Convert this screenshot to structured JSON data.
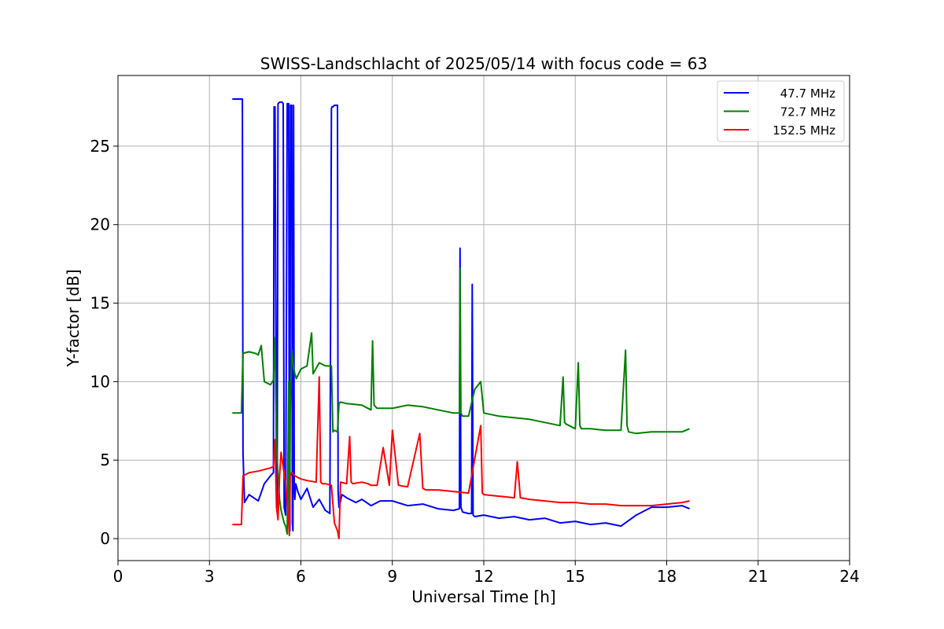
{
  "chart_data": {
    "type": "line",
    "title": "SWISS-Landschlacht of 2025/05/14 with focus code = 63",
    "xlabel": "Universal Time [h]",
    "ylabel": "Y-factor [dB]",
    "xlim": [
      0,
      24
    ],
    "ylim": [
      -1.4,
      29.5
    ],
    "xticks": [
      0,
      3,
      6,
      9,
      12,
      15,
      18,
      21,
      24
    ],
    "yticks": [
      0,
      5,
      10,
      15,
      20,
      25
    ],
    "grid": true,
    "legend_position": "top-right",
    "series": [
      {
        "name": "47.7 MHz",
        "color": "#0000ff",
        "x": [
          3.75,
          4.05,
          4.08,
          4.1,
          4.15,
          4.3,
          4.6,
          4.8,
          5.0,
          5.1,
          5.12,
          5.15,
          5.2,
          5.22,
          5.25,
          5.3,
          5.32,
          5.38,
          5.42,
          5.45,
          5.5,
          5.55,
          5.6,
          5.62,
          5.64,
          5.66,
          5.7,
          5.72,
          5.74,
          5.76,
          5.78,
          5.8,
          5.83,
          5.9,
          6.0,
          6.2,
          6.4,
          6.6,
          6.8,
          6.95,
          7.0,
          7.02,
          7.05,
          7.1,
          7.2,
          7.22,
          7.25,
          7.35,
          7.5,
          7.8,
          8.0,
          8.3,
          8.6,
          9.0,
          9.5,
          10.0,
          10.5,
          11.0,
          11.2,
          11.22,
          11.25,
          11.3,
          11.5,
          11.6,
          11.62,
          11.65,
          11.7,
          12.0,
          12.5,
          13.0,
          13.5,
          14.0,
          14.5,
          15.0,
          15.5,
          16.0,
          16.5,
          17.0,
          17.5,
          18.0,
          18.5,
          18.75
        ],
        "y": [
          28.0,
          28.0,
          28.0,
          5.5,
          2.3,
          2.8,
          2.4,
          3.5,
          4.0,
          4.2,
          27.5,
          27.5,
          3.0,
          2.0,
          27.7,
          27.8,
          27.8,
          27.8,
          27.7,
          2.0,
          1.5,
          27.7,
          27.7,
          1.0,
          0.5,
          27.6,
          27.6,
          1.0,
          0.5,
          27.6,
          3.5,
          2.5,
          3.5,
          3.0,
          2.5,
          3.2,
          2.0,
          2.5,
          1.8,
          1.6,
          27.4,
          27.5,
          27.5,
          27.6,
          27.6,
          3.0,
          2.0,
          2.8,
          2.6,
          2.3,
          2.5,
          2.1,
          2.4,
          2.4,
          2.1,
          2.2,
          1.9,
          1.8,
          1.9,
          18.5,
          2.0,
          1.7,
          1.6,
          1.6,
          16.2,
          1.5,
          1.4,
          1.5,
          1.3,
          1.4,
          1.2,
          1.3,
          1.0,
          1.1,
          0.9,
          1.0,
          0.8,
          1.5,
          2.0,
          2.0,
          2.1,
          1.9
        ]
      },
      {
        "name": "72.7 MHz",
        "color": "#008000",
        "x": [
          3.75,
          4.05,
          4.1,
          4.3,
          4.5,
          4.6,
          4.7,
          4.8,
          5.0,
          5.1,
          5.15,
          5.2,
          5.25,
          5.3,
          5.35,
          5.45,
          5.5,
          5.55,
          5.6,
          5.62,
          5.65,
          5.7,
          5.75,
          5.8,
          5.85,
          6.0,
          6.2,
          6.35,
          6.4,
          6.6,
          6.8,
          7.0,
          7.05,
          7.1,
          7.2,
          7.25,
          7.3,
          7.5,
          8.0,
          8.3,
          8.35,
          8.4,
          8.5,
          9.0,
          9.5,
          10.0,
          10.5,
          11.0,
          11.2,
          11.22,
          11.25,
          11.3,
          11.5,
          11.7,
          11.9,
          12.0,
          12.5,
          13.0,
          13.5,
          14.0,
          14.5,
          14.6,
          14.65,
          14.7,
          15.0,
          15.1,
          15.15,
          15.2,
          15.5,
          16.0,
          16.5,
          16.65,
          16.7,
          16.75,
          17.0,
          17.5,
          18.0,
          18.5,
          18.75
        ],
        "y": [
          8.0,
          8.0,
          11.8,
          11.9,
          11.8,
          11.7,
          12.3,
          10.0,
          9.8,
          10.1,
          12.8,
          6.0,
          4.0,
          2.5,
          1.8,
          1.0,
          0.8,
          0.3,
          10.0,
          0.2,
          8.0,
          12.0,
          11.0,
          10.5,
          10.2,
          10.8,
          11.0,
          13.1,
          10.5,
          11.2,
          11.0,
          11.0,
          6.8,
          6.9,
          6.8,
          8.6,
          8.7,
          8.6,
          8.5,
          8.2,
          12.6,
          8.5,
          8.3,
          8.3,
          8.5,
          8.4,
          8.2,
          8.0,
          8.0,
          17.2,
          8.0,
          7.8,
          7.8,
          9.5,
          10.0,
          8.0,
          7.8,
          7.7,
          7.6,
          7.4,
          7.2,
          10.3,
          7.4,
          7.3,
          7.0,
          11.2,
          7.2,
          7.0,
          7.0,
          6.9,
          6.9,
          12.0,
          7.2,
          6.8,
          6.7,
          6.8,
          6.8,
          6.8,
          7.0
        ]
      },
      {
        "name": "152.5 MHz",
        "color": "#ff0000",
        "x": [
          3.75,
          4.05,
          4.1,
          4.3,
          4.6,
          4.8,
          5.0,
          5.1,
          5.15,
          5.2,
          5.25,
          5.3,
          5.35,
          5.5,
          5.6,
          5.62,
          5.65,
          5.7,
          5.8,
          5.9,
          6.0,
          6.2,
          6.5,
          6.6,
          6.65,
          6.7,
          6.8,
          7.0,
          7.1,
          7.2,
          7.25,
          7.3,
          7.5,
          7.6,
          7.65,
          7.7,
          8.0,
          8.2,
          8.3,
          8.5,
          8.7,
          8.9,
          9.0,
          9.2,
          9.5,
          9.9,
          10.0,
          10.1,
          10.5,
          11.0,
          11.5,
          11.9,
          11.95,
          12.0,
          12.5,
          13.0,
          13.1,
          13.2,
          13.5,
          14.0,
          14.5,
          15.0,
          15.5,
          16.0,
          16.5,
          17.0,
          17.5,
          18.0,
          18.5,
          18.75
        ],
        "y": [
          0.9,
          0.9,
          4.0,
          4.2,
          4.3,
          4.4,
          4.5,
          4.6,
          6.3,
          2.0,
          1.2,
          4.0,
          5.5,
          3.5,
          1.0,
          0.3,
          4.0,
          4.2,
          4.0,
          3.9,
          3.8,
          3.7,
          3.6,
          10.3,
          3.6,
          3.5,
          3.5,
          3.4,
          1.0,
          0.5,
          0.0,
          3.6,
          3.5,
          6.5,
          3.6,
          3.5,
          3.6,
          3.5,
          3.4,
          3.4,
          5.8,
          3.4,
          6.9,
          3.4,
          3.3,
          6.7,
          3.2,
          3.1,
          3.1,
          3.0,
          2.9,
          7.2,
          2.9,
          2.8,
          2.7,
          2.6,
          4.9,
          2.6,
          2.5,
          2.4,
          2.3,
          2.3,
          2.2,
          2.2,
          2.1,
          2.1,
          2.1,
          2.2,
          2.3,
          2.4
        ]
      }
    ]
  }
}
